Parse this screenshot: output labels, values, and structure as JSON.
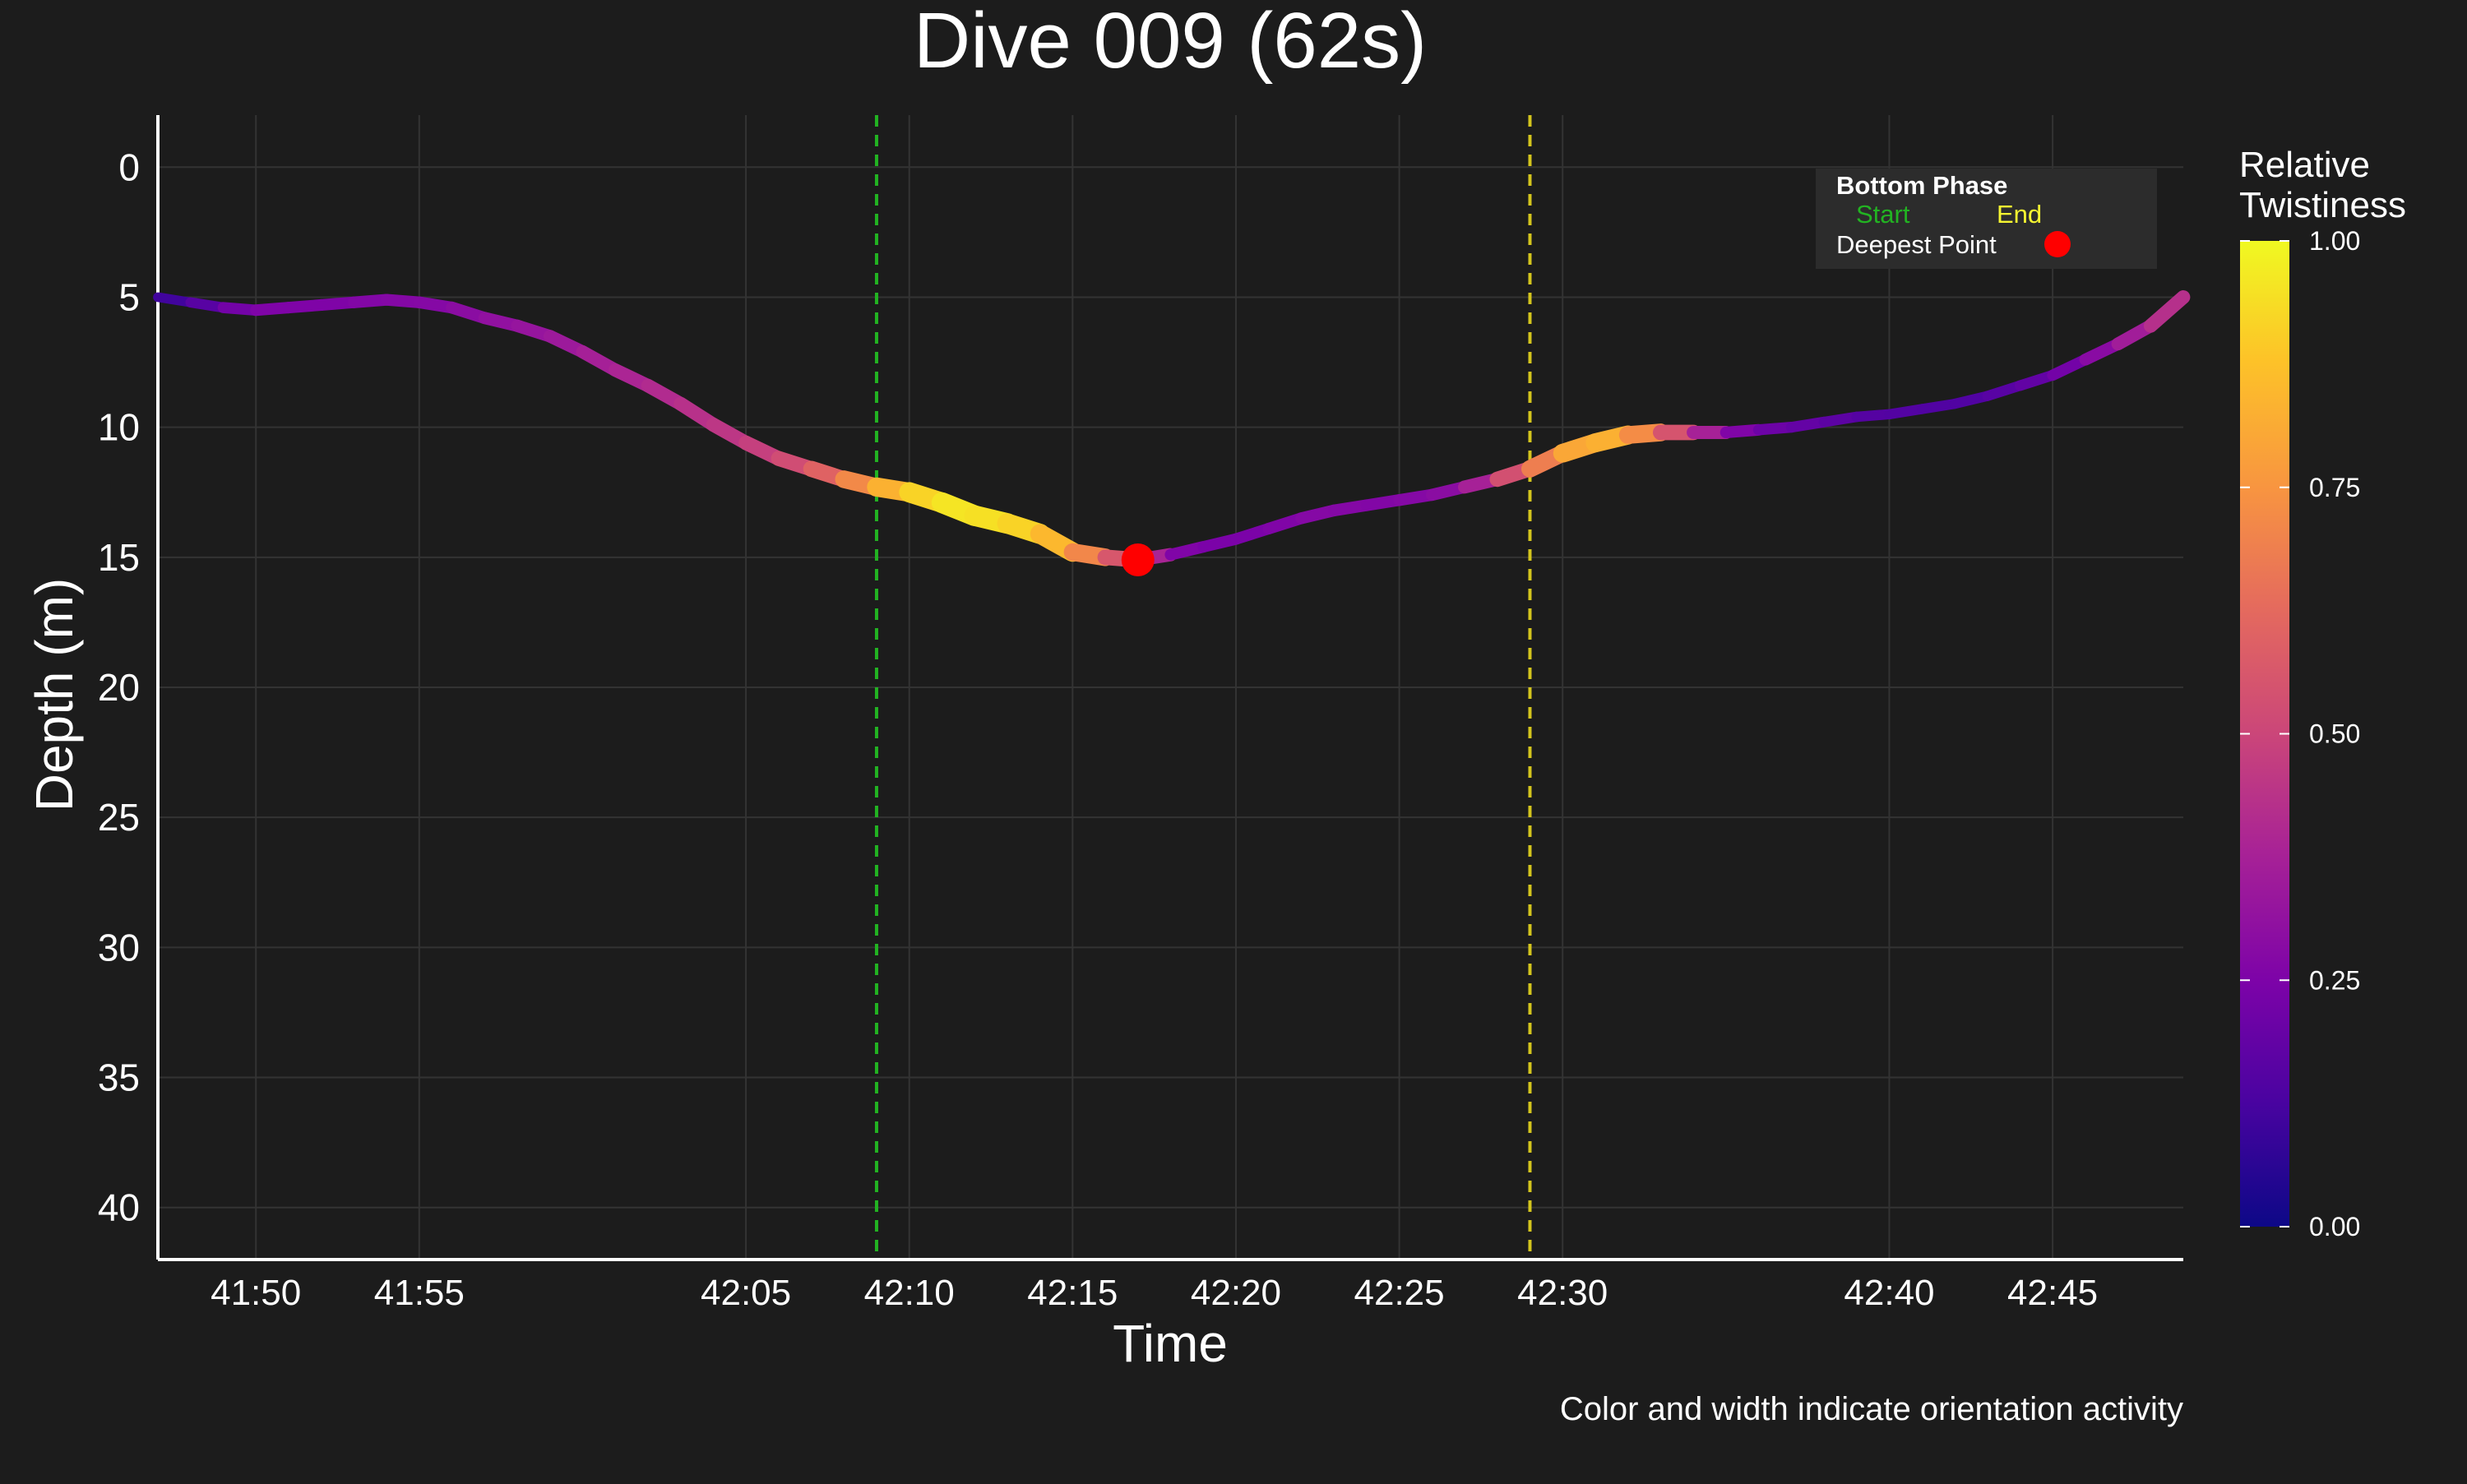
{
  "chart_data": {
    "type": "line",
    "title": "Dive 009 (62s)",
    "xlabel": "Time",
    "ylabel": "Depth (m)",
    "caption": "Color and width indicate orientation activity",
    "x_unit": "mm:ss",
    "xlim": [
      "41:47",
      "42:49"
    ],
    "ylim": [
      42,
      -2
    ],
    "y_reversed": true,
    "x_ticks": [
      "41:50",
      "41:55",
      "42:05",
      "42:10",
      "42:15",
      "42:20",
      "42:25",
      "42:30",
      "42:40",
      "42:45"
    ],
    "y_ticks": [
      0,
      5,
      10,
      15,
      20,
      25,
      30,
      35,
      40
    ],
    "grid": true,
    "series": [
      {
        "x": [
          "41:47",
          "41:48",
          "41:49",
          "41:50",
          "41:51",
          "41:52",
          "41:53",
          "41:54",
          "41:55",
          "41:56",
          "41:57",
          "41:58",
          "41:59",
          "42:00",
          "42:01",
          "42:02",
          "42:03",
          "42:04",
          "42:05",
          "42:06",
          "42:07",
          "42:08",
          "42:09",
          "42:10",
          "42:11",
          "42:12",
          "42:13",
          "42:14",
          "42:15",
          "42:16",
          "42:17",
          "42:18",
          "42:19",
          "42:20",
          "42:21",
          "42:22",
          "42:23",
          "42:24",
          "42:25",
          "42:26",
          "42:27",
          "42:28",
          "42:29",
          "42:30",
          "42:31",
          "42:32",
          "42:33",
          "42:34",
          "42:35",
          "42:36",
          "42:37",
          "42:38",
          "42:39",
          "42:40",
          "42:41",
          "42:42",
          "42:43",
          "42:44",
          "42:45",
          "42:46",
          "42:47",
          "42:48",
          "42:49"
        ],
        "depth": [
          5.0,
          5.2,
          5.4,
          5.5,
          5.4,
          5.3,
          5.2,
          5.1,
          5.2,
          5.4,
          5.8,
          6.1,
          6.5,
          7.1,
          7.8,
          8.4,
          9.1,
          9.9,
          10.6,
          11.2,
          11.6,
          12.0,
          12.3,
          12.5,
          12.9,
          13.4,
          13.7,
          14.1,
          14.8,
          15.0,
          15.1,
          14.9,
          14.6,
          14.3,
          13.9,
          13.5,
          13.2,
          13.0,
          12.8,
          12.6,
          12.3,
          12.0,
          11.6,
          11.0,
          10.6,
          10.3,
          10.2,
          10.2,
          10.2,
          10.1,
          10.0,
          9.8,
          9.6,
          9.5,
          9.3,
          9.1,
          8.8,
          8.4,
          8.0,
          7.4,
          6.8,
          6.1,
          5.0
        ],
        "twistiness": [
          0.1,
          0.12,
          0.2,
          0.25,
          0.26,
          0.25,
          0.26,
          0.27,
          0.27,
          0.28,
          0.3,
          0.32,
          0.33,
          0.36,
          0.38,
          0.4,
          0.42,
          0.44,
          0.46,
          0.5,
          0.55,
          0.65,
          0.78,
          0.88,
          0.95,
          0.96,
          0.93,
          0.9,
          0.8,
          0.62,
          0.5,
          0.27,
          0.25,
          0.24,
          0.25,
          0.27,
          0.28,
          0.26,
          0.27,
          0.28,
          0.3,
          0.45,
          0.62,
          0.75,
          0.85,
          0.8,
          0.65,
          0.45,
          0.3,
          0.22,
          0.2,
          0.18,
          0.16,
          0.15,
          0.15,
          0.14,
          0.15,
          0.17,
          0.2,
          0.25,
          0.32,
          0.4,
          0.45
        ]
      }
    ],
    "bottom_phase": {
      "start": "42:09",
      "end": "42:29"
    },
    "deepest_point": {
      "x": "42:17",
      "depth": 15.1
    },
    "legend": {
      "position": "top-right",
      "title": "Bottom Phase",
      "start_label": "Start",
      "end_label": "End",
      "deepest_label": "Deepest Point",
      "start_color": "#22b322",
      "end_color": "#d4c51d",
      "deepest_color": "#ff0000"
    },
    "colorbar": {
      "title_line1": "Relative",
      "title_line2": "Twistiness",
      "ticks": [
        "0.00",
        "0.25",
        "0.50",
        "0.75",
        "1.00"
      ],
      "range": [
        0,
        1
      ],
      "colormap": "plasma"
    }
  }
}
